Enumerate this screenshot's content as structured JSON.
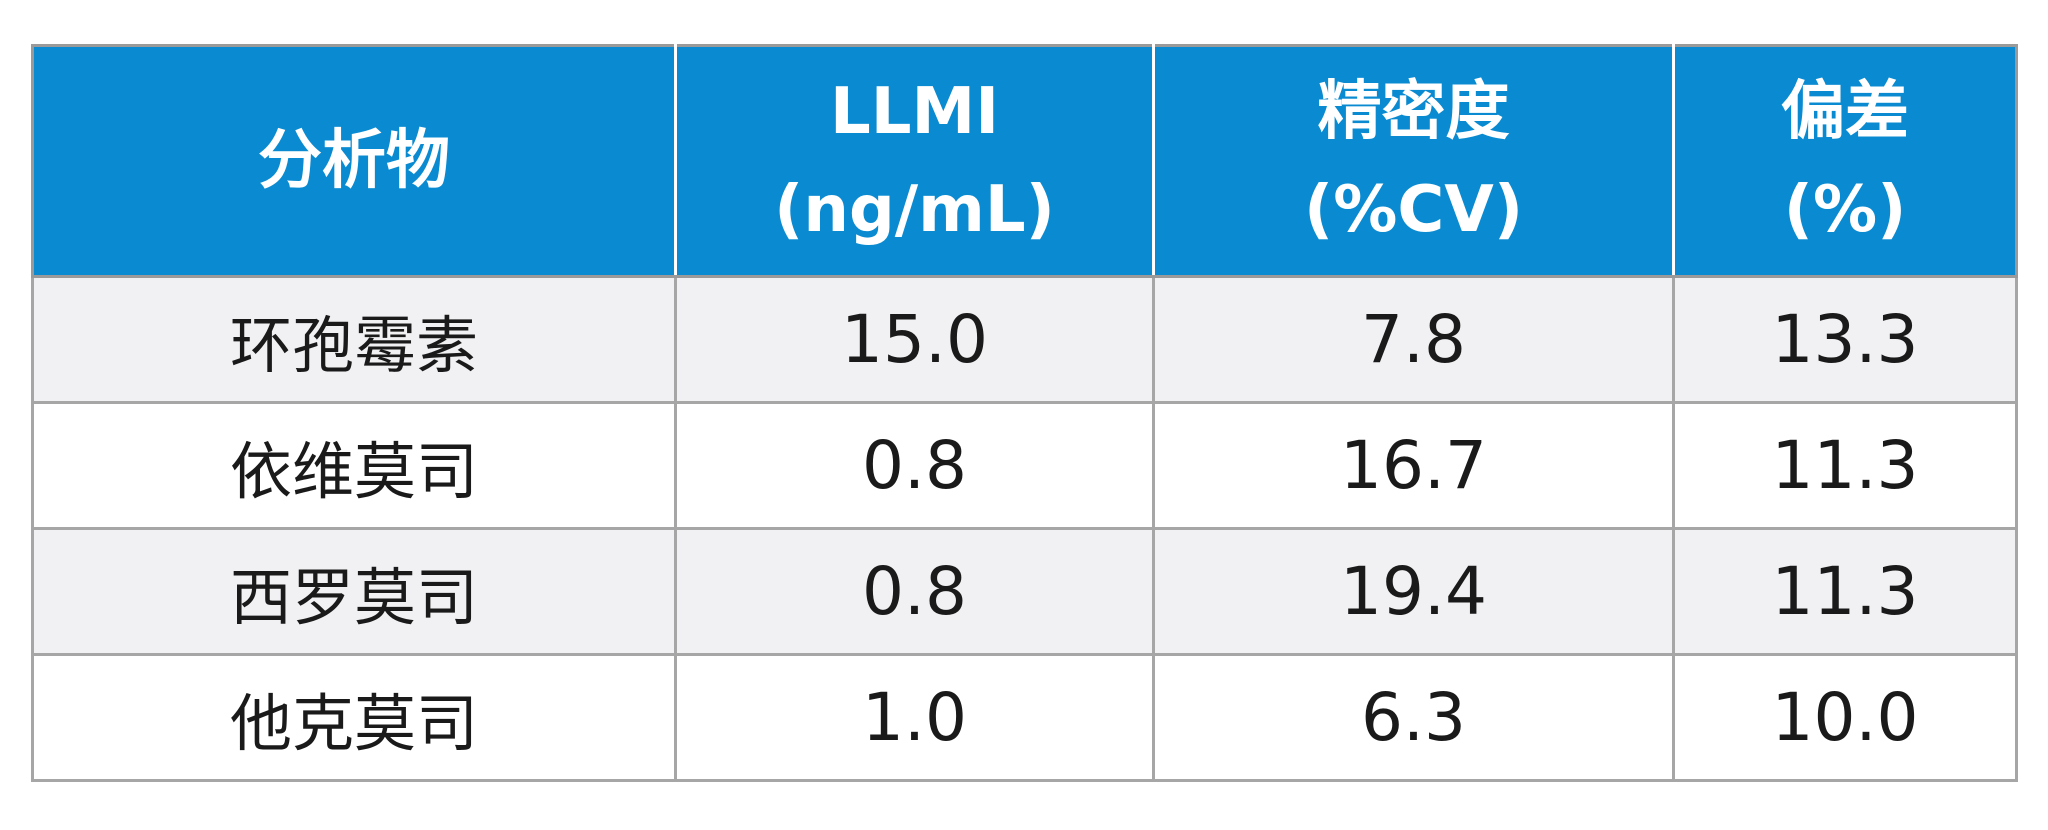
{
  "table": {
    "headers": [
      {
        "lines": [
          "分析物"
        ]
      },
      {
        "lines": [
          "LLMI",
          "(ng/mL)"
        ]
      },
      {
        "lines": [
          "精密度",
          "(%CV)"
        ]
      },
      {
        "lines": [
          "偏差",
          "(%)"
        ]
      }
    ],
    "rows": [
      {
        "analyte": "环孢霉素",
        "llmi": "15.0",
        "precision": "7.8",
        "bias": "13.3"
      },
      {
        "analyte": "依维莫司",
        "llmi": "0.8",
        "precision": "16.7",
        "bias": "11.3"
      },
      {
        "analyte": "西罗莫司",
        "llmi": "0.8",
        "precision": "19.4",
        "bias": "11.3"
      },
      {
        "analyte": "他克莫司",
        "llmi": "1.0",
        "precision": "6.3",
        "bias": "10.0"
      }
    ],
    "colors": {
      "header_bg": "#0a8bd1",
      "header_text": "#ffffff",
      "row_alt_bg": "#f1f1f3",
      "row_bg": "#ffffff",
      "border": "#a6a6a6"
    }
  }
}
